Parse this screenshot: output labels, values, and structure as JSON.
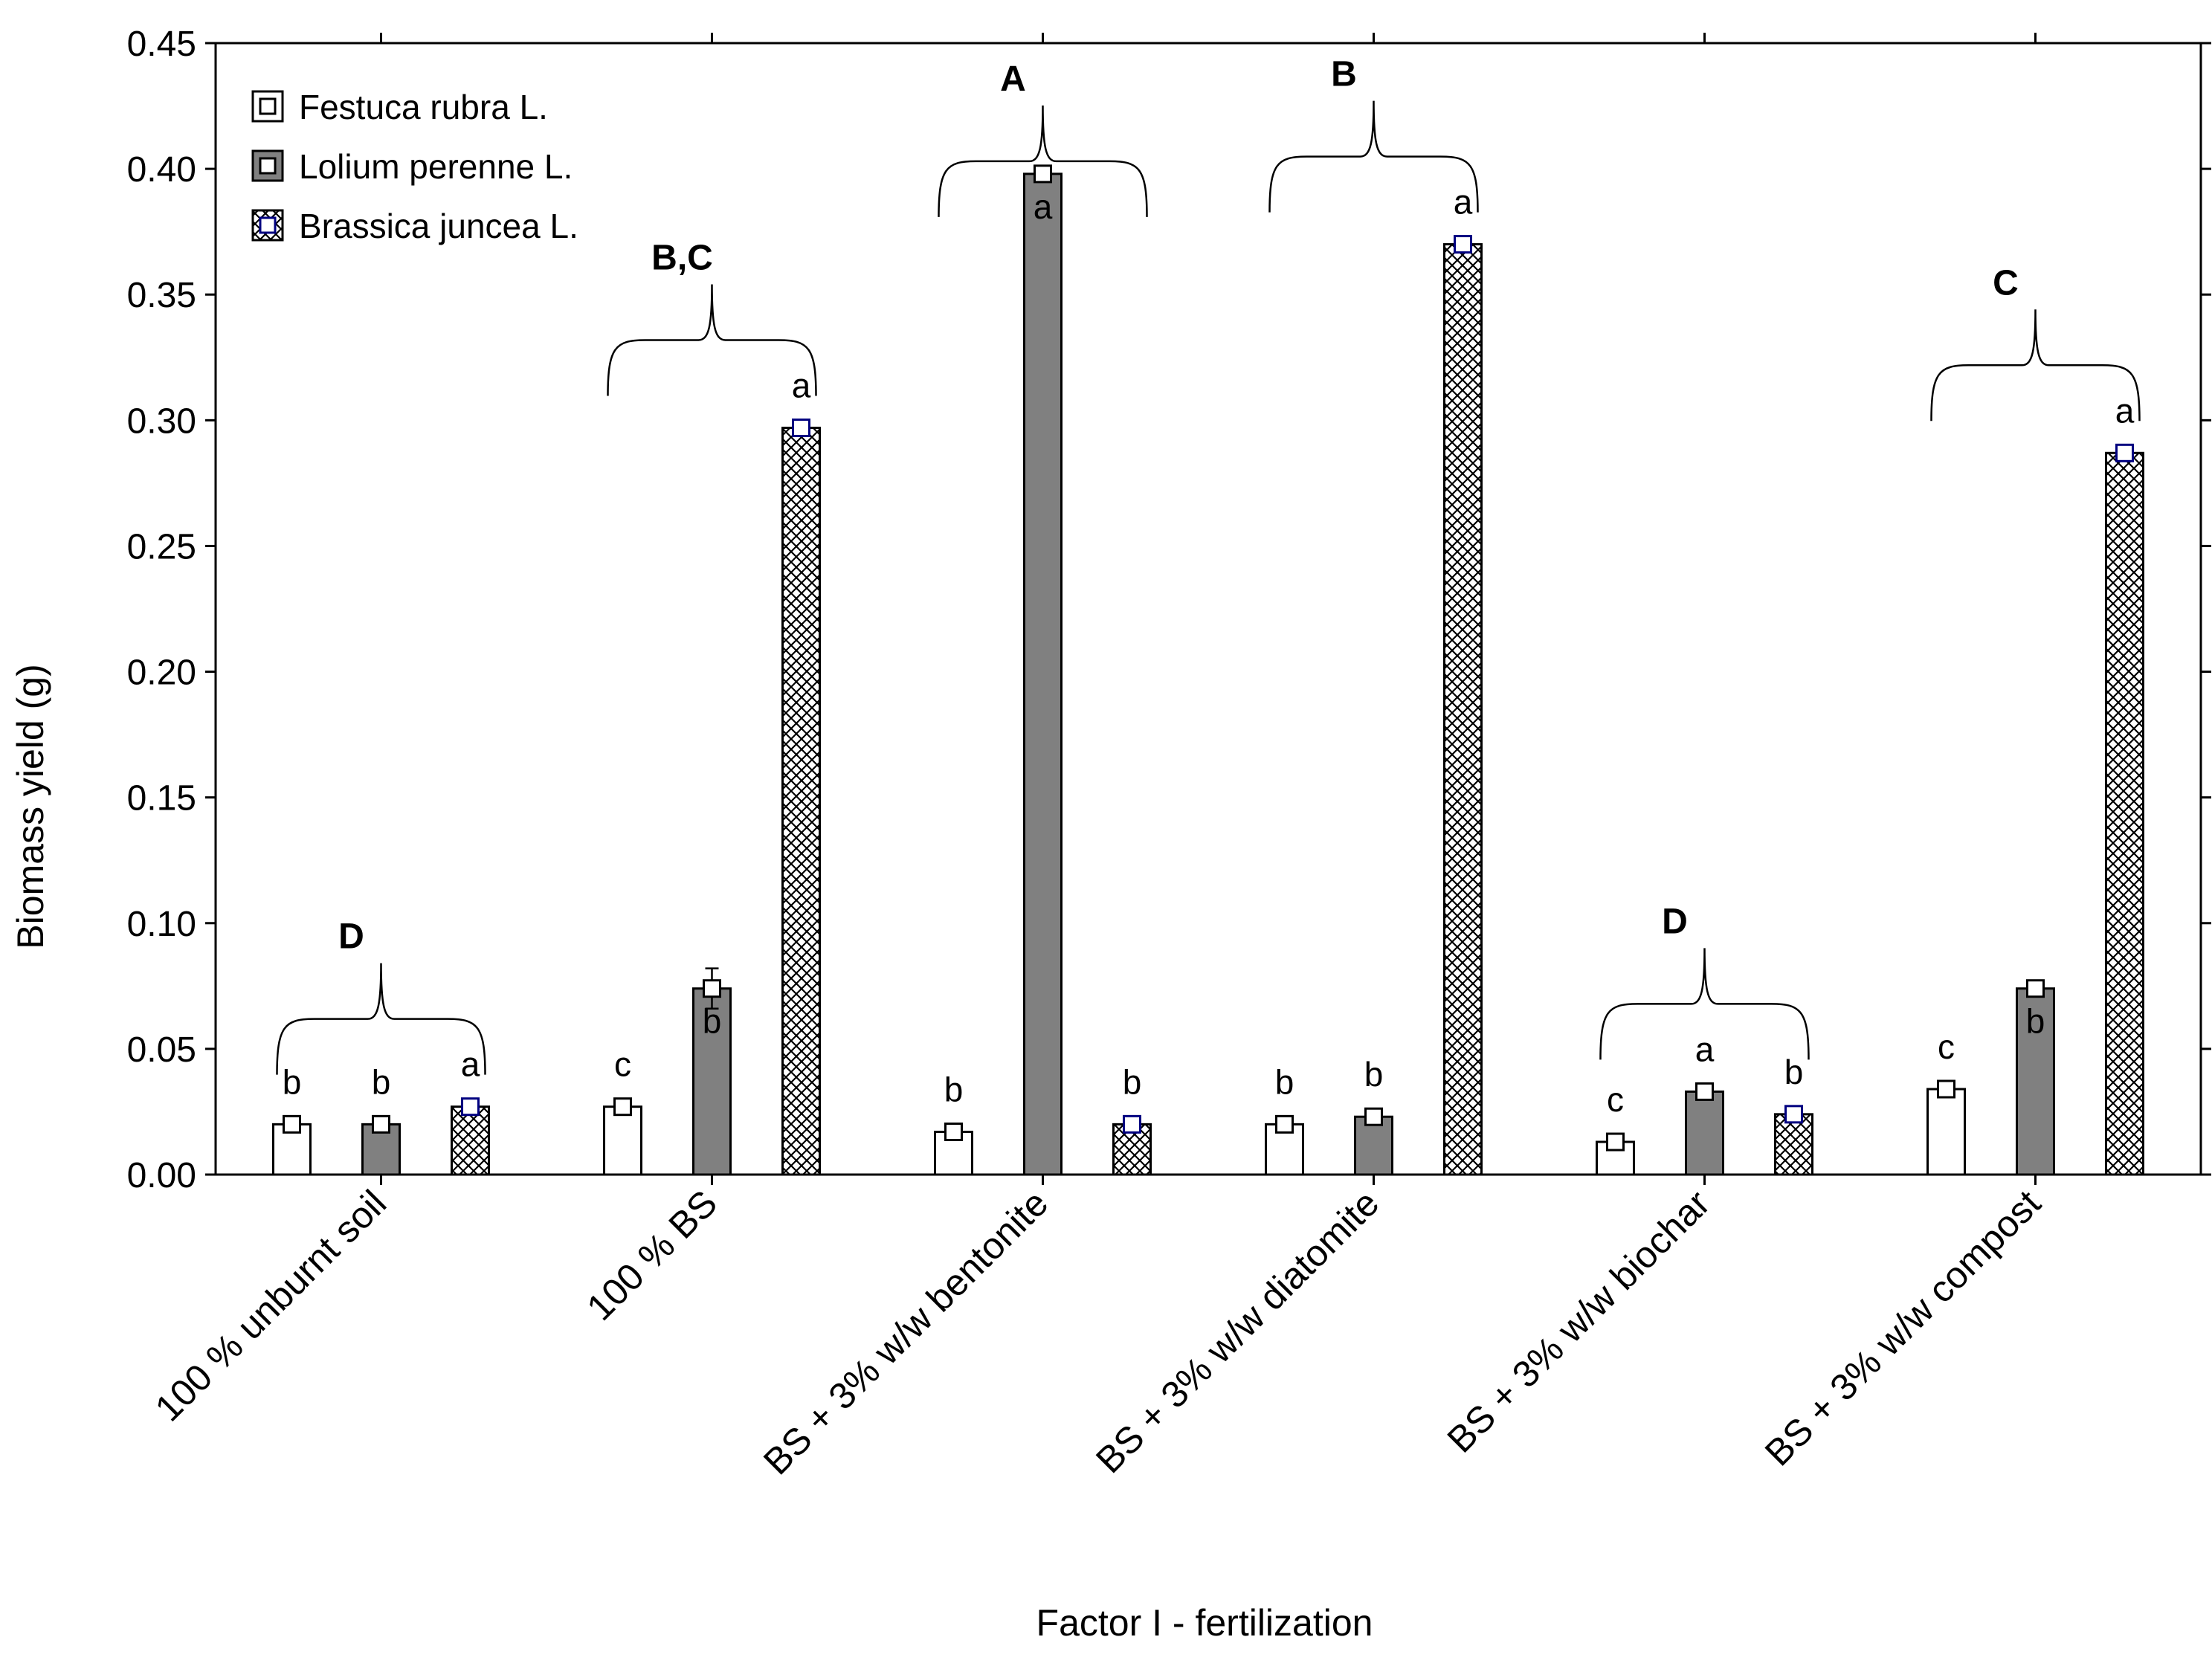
{
  "chart_data": {
    "type": "bar",
    "xlabel": "Factor I - fertilization",
    "ylabel": "Biomass yield (g)",
    "ylim": [
      0,
      0.45
    ],
    "yticks": [
      "0.00",
      "0.05",
      "0.10",
      "0.15",
      "0.20",
      "0.25",
      "0.30",
      "0.35",
      "0.40",
      "0.45"
    ],
    "legend_position": "top-left",
    "categories": [
      "100 % unburnt soil",
      "100 % BS",
      "BS + 3% w/w bentonite",
      "BS + 3% w/w diatomite",
      "BS + 3% w/w biochar",
      "BS + 3% w/w compost"
    ],
    "series": [
      {
        "name": "Festuca rubra L.",
        "fill": "#ffffff",
        "pattern": "none",
        "marker_color": "#000000",
        "values": [
          0.02,
          0.027,
          0.017,
          0.02,
          0.013,
          0.034
        ],
        "errors": [
          0.003,
          0.003,
          0.003,
          0.003,
          0.003,
          0.003
        ],
        "letters": [
          "b",
          "c",
          "b",
          "b",
          "c",
          "c"
        ]
      },
      {
        "name": "Lolium perenne L.",
        "fill": "#808080",
        "pattern": "none",
        "marker_color": "#000000",
        "values": [
          0.02,
          0.074,
          0.398,
          0.023,
          0.033,
          0.074
        ],
        "errors": [
          0.003,
          0.008,
          0.003,
          0.003,
          0.003,
          0.003
        ],
        "letters": [
          "b",
          "b",
          "a",
          "b",
          "a",
          "b"
        ]
      },
      {
        "name": "Brassica juncea L.",
        "fill": "#ffffff",
        "pattern": "crosshatch",
        "marker_color": "#000080",
        "values": [
          0.027,
          0.297,
          0.02,
          0.37,
          0.024,
          0.287
        ],
        "errors": [
          0.002,
          0.003,
          0.002,
          0.002,
          0.002,
          0.002
        ],
        "letters": [
          "a",
          "a",
          "b",
          "a",
          "b",
          "a"
        ]
      }
    ],
    "group_letters": [
      "D",
      "B,C",
      "A",
      "B",
      "D",
      "C"
    ]
  }
}
